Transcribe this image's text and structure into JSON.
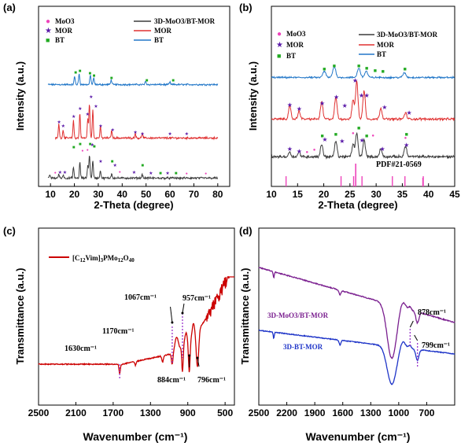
{
  "colors": {
    "black": "#000000",
    "dark_gray": "#3c3c3c",
    "red": "#e03030",
    "blue": "#2277c8",
    "magenta": "#ee44bb",
    "purple": "#5a1aa8",
    "green": "#22aa22",
    "dark_red": "#cc0000",
    "dark_purple": "#7a1f8f",
    "dark_blue": "#1f35c8",
    "violet_dash": "#9933cc"
  },
  "chart_data": [
    {
      "id": "a",
      "type": "line",
      "panel_label": "(a)",
      "xlabel": "2-Theta (degree)",
      "ylabel": "Intensity (a.u.)",
      "xlim": [
        5,
        85
      ],
      "xticks": [
        10,
        20,
        30,
        40,
        50,
        60,
        70,
        80
      ],
      "legend_markers": [
        {
          "symbol": "●",
          "label": "MoO3",
          "color": "#ee44bb"
        },
        {
          "symbol": "★",
          "label": "MOR",
          "color": "#5a1aa8"
        },
        {
          "symbol": "■",
          "label": "BT",
          "color": "#22aa22"
        }
      ],
      "series": [
        {
          "name": "3D-MoO3/BT-MOR",
          "color": "#3c3c3c",
          "peaks": [
            [
              9.8,
              4
            ],
            [
              13.5,
              5
            ],
            [
              15.3,
              4
            ],
            [
              19.6,
              14
            ],
            [
              22.3,
              20
            ],
            [
              25.6,
              16
            ],
            [
              26.3,
              30
            ],
            [
              27.7,
              22
            ],
            [
              30.9,
              10
            ],
            [
              35.6,
              6
            ],
            [
              48.4,
              5
            ]
          ]
        },
        {
          "name": "MOR",
          "color": "#e03030",
          "peaks": [
            [
              13.5,
              18
            ],
            [
              15.3,
              10
            ],
            [
              19.6,
              22
            ],
            [
              22.3,
              32
            ],
            [
              25.6,
              24
            ],
            [
              26.3,
              44
            ],
            [
              27.7,
              36
            ],
            [
              30.9,
              14
            ],
            [
              35.6,
              10
            ],
            [
              45.5,
              6
            ],
            [
              48.4,
              6
            ]
          ]
        },
        {
          "name": "BT",
          "color": "#2277c8",
          "peaks": [
            [
              20.1,
              10
            ],
            [
              22.0,
              14
            ],
            [
              26.7,
              12
            ],
            [
              28.1,
              8
            ],
            [
              35.4,
              6
            ],
            [
              49.8,
              4
            ],
            [
              60.0,
              3
            ]
          ]
        }
      ]
    },
    {
      "id": "b",
      "type": "line",
      "panel_label": "(b)",
      "xlabel": "2-Theta (degree)",
      "ylabel": "Intensity (a.u.)",
      "xlim": [
        10,
        45
      ],
      "xticks": [
        10,
        15,
        20,
        25,
        30,
        35,
        40,
        45
      ],
      "legend_markers": [
        {
          "symbol": "●",
          "label": "MoO3",
          "color": "#ee44bb"
        },
        {
          "symbol": "★",
          "label": "MOR",
          "color": "#5a1aa8"
        },
        {
          "symbol": "■",
          "label": "BT",
          "color": "#22aa22"
        }
      ],
      "annotation": "PDF#21-0569",
      "reference_lines": [
        12.8,
        23.3,
        25.7,
        27.3,
        33.1,
        35.5,
        39.0
      ],
      "series": [
        {
          "name": "3D-MoO3/BT-MOR",
          "color": "#3c3c3c",
          "peaks": [
            [
              13.5,
              6
            ],
            [
              15.3,
              6
            ],
            [
              19.6,
              16
            ],
            [
              22.3,
              20
            ],
            [
              25.6,
              16
            ],
            [
              26.3,
              30
            ],
            [
              27.7,
              22
            ],
            [
              30.9,
              10
            ],
            [
              35.6,
              14
            ]
          ]
        },
        {
          "name": "MOR",
          "color": "#e03030",
          "peaks": [
            [
              13.5,
              16
            ],
            [
              15.3,
              10
            ],
            [
              19.6,
              22
            ],
            [
              22.3,
              28
            ],
            [
              25.6,
              24
            ],
            [
              26.3,
              48
            ],
            [
              27.7,
              36
            ],
            [
              30.9,
              14
            ],
            [
              35.6,
              8
            ]
          ]
        },
        {
          "name": "BT",
          "color": "#2277c8",
          "peaks": [
            [
              20.1,
              8
            ],
            [
              22.0,
              14
            ],
            [
              26.7,
              12
            ],
            [
              28.1,
              8
            ],
            [
              35.4,
              6
            ]
          ]
        }
      ]
    },
    {
      "id": "c",
      "type": "line",
      "panel_label": "(c)",
      "xlabel": "Wavenumber (cm⁻¹)",
      "ylabel": "Transmittance (a.u.)",
      "xlim": [
        2500,
        400
      ],
      "xticks": [
        2500,
        2100,
        1700,
        1300,
        900,
        500
      ],
      "series": [
        {
          "name": "[C12Vim]3PMo12O40",
          "color": "#cc0000"
        }
      ],
      "annotations": [
        {
          "text": "1630cm⁻¹",
          "x": 1630
        },
        {
          "text": "1170cm⁻¹",
          "x": 1170
        },
        {
          "text": "1067cm⁻¹",
          "x": 1067
        },
        {
          "text": "957cm⁻¹",
          "x": 957
        },
        {
          "text": "884cm⁻¹",
          "x": 884
        },
        {
          "text": "796cm⁻¹",
          "x": 796
        }
      ]
    },
    {
      "id": "d",
      "type": "line",
      "panel_label": "(d)",
      "xlabel": "Wavenumber (cm⁻¹)",
      "ylabel": "Transmittance (a.u.)",
      "xlim": [
        2500,
        400
      ],
      "xticks": [
        2500,
        2200,
        1900,
        1600,
        1300,
        1000,
        700
      ],
      "series": [
        {
          "name": "3D-MoO3/BT-MOR",
          "color": "#7a1f8f"
        },
        {
          "name": "3D-BT-MOR",
          "color": "#1f35c8"
        }
      ],
      "annotations": [
        {
          "text": "878cm⁻¹",
          "x": 878
        },
        {
          "text": "799cm⁻¹",
          "x": 799
        }
      ]
    }
  ]
}
